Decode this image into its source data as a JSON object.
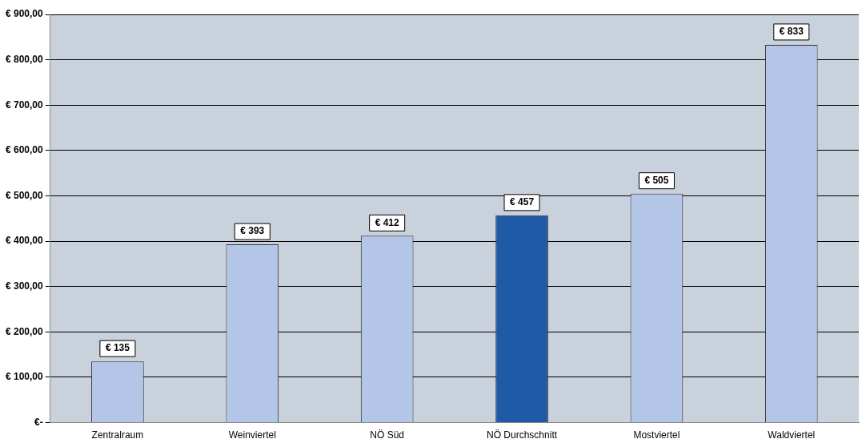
{
  "chart_data": {
    "type": "bar",
    "categories": [
      "Zentralraum",
      "Weinviertel",
      "NÖ Süd",
      "NÖ Durchschnitt",
      "Mostviertel",
      "Waldviertel"
    ],
    "values": [
      135,
      393,
      412,
      457,
      505,
      833
    ],
    "colors": [
      "#b4c6e7",
      "#b4c6e7",
      "#b4c6e7",
      "#1f5aa6",
      "#b4c6e7",
      "#b4c6e7"
    ],
    "value_labels": [
      "€ 135",
      "€ 393",
      "€ 412",
      "€ 457",
      "€ 505",
      "€ 833"
    ],
    "ylim": [
      0,
      900
    ],
    "yticks": [
      {
        "value": 0,
        "label": "€-"
      },
      {
        "value": 100,
        "label": "€ 100,00"
      },
      {
        "value": 200,
        "label": "€ 200,00"
      },
      {
        "value": 300,
        "label": "€ 300,00"
      },
      {
        "value": 400,
        "label": "€ 400,00"
      },
      {
        "value": 500,
        "label": "€ 500,00"
      },
      {
        "value": 600,
        "label": "€ 600,00"
      },
      {
        "value": 700,
        "label": "€ 700,00"
      },
      {
        "value": 800,
        "label": "€ 800,00"
      },
      {
        "value": 900,
        "label": "€ 900,00"
      }
    ],
    "grid": "y",
    "legend": false
  }
}
